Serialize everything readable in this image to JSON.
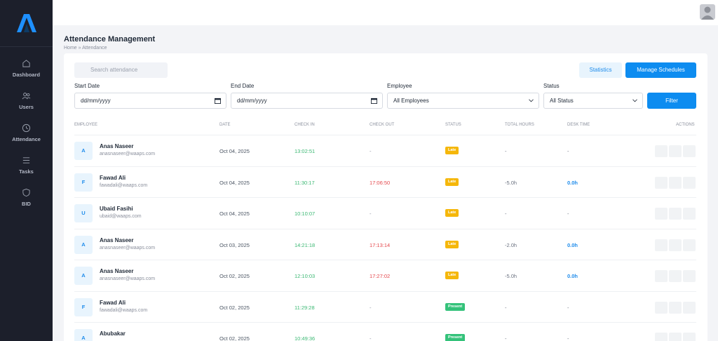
{
  "sidebar": {
    "items": [
      {
        "label": "Dashboard",
        "icon": "home-icon"
      },
      {
        "label": "Users",
        "icon": "users-icon"
      },
      {
        "label": "Attendance",
        "icon": "clock-icon"
      },
      {
        "label": "Tasks",
        "icon": "list-icon"
      },
      {
        "label": "BID",
        "icon": "shield-icon"
      }
    ]
  },
  "page": {
    "title": "Attendance Management",
    "breadcrumb": "Home  »  Attendance"
  },
  "search": {
    "placeholder": "Search attendance"
  },
  "buttons": {
    "statistics": "Statistics",
    "manage": "Manage Schedules",
    "filter": "Filter"
  },
  "filters": {
    "start_label": "Start Date",
    "start_value": "dd/mm/yyyy",
    "end_label": "End Date",
    "end_value": "dd/mm/yyyy",
    "employee_label": "Employee",
    "employee_value": "All Employees",
    "status_label": "Status",
    "status_value": "All Status"
  },
  "table": {
    "headers": [
      "EMPLOYEE",
      "DATE",
      "CHECK IN",
      "CHECK OUT",
      "STATUS",
      "TOTAL HOURS",
      "DESK TIME",
      "ACTIONS"
    ],
    "rows": [
      {
        "initial": "A",
        "name": "Anas Naseer",
        "email": "anasnaseer@waaps.com",
        "date": "Oct 04, 2025",
        "check_in": "13:02:51",
        "check_out": "-",
        "status": "Late",
        "total": "-",
        "desk": "-"
      },
      {
        "initial": "F",
        "name": "Fawad Ali",
        "email": "fawadali@waaps.com",
        "date": "Oct 04, 2025",
        "check_in": "11:30:17",
        "check_out": "17:06:50",
        "status": "Late",
        "total": "-5.0h",
        "desk": "0.0h"
      },
      {
        "initial": "U",
        "name": "Ubaid Fasihi",
        "email": "ubaid@waaps.com",
        "date": "Oct 04, 2025",
        "check_in": "10:10:07",
        "check_out": "-",
        "status": "Late",
        "total": "-",
        "desk": "-"
      },
      {
        "initial": "A",
        "name": "Anas Naseer",
        "email": "anasnaseer@waaps.com",
        "date": "Oct 03, 2025",
        "check_in": "14:21:18",
        "check_out": "17:13:14",
        "status": "Late",
        "total": "-2.0h",
        "desk": "0.0h"
      },
      {
        "initial": "A",
        "name": "Anas Naseer",
        "email": "anasnaseer@waaps.com",
        "date": "Oct 02, 2025",
        "check_in": "12:10:03",
        "check_out": "17:27:02",
        "status": "Late",
        "total": "-5.0h",
        "desk": "0.0h"
      },
      {
        "initial": "F",
        "name": "Fawad Ali",
        "email": "fawadali@waaps.com",
        "date": "Oct 02, 2025",
        "check_in": "11:29:28",
        "check_out": "-",
        "status": "Present",
        "total": "-",
        "desk": "-"
      },
      {
        "initial": "A",
        "name": "Abubakar",
        "email": "",
        "date": "Oct 02, 2025",
        "check_in": "10:49:36",
        "check_out": "-",
        "status": "Present",
        "total": "-",
        "desk": "-"
      }
    ]
  },
  "colors": {
    "accent": "#0d8cf0",
    "late": "#f5b70a",
    "present": "#34c27a",
    "check_in": "#3bb873",
    "check_out": "#e5484d",
    "desk": "#1f8ceb"
  }
}
